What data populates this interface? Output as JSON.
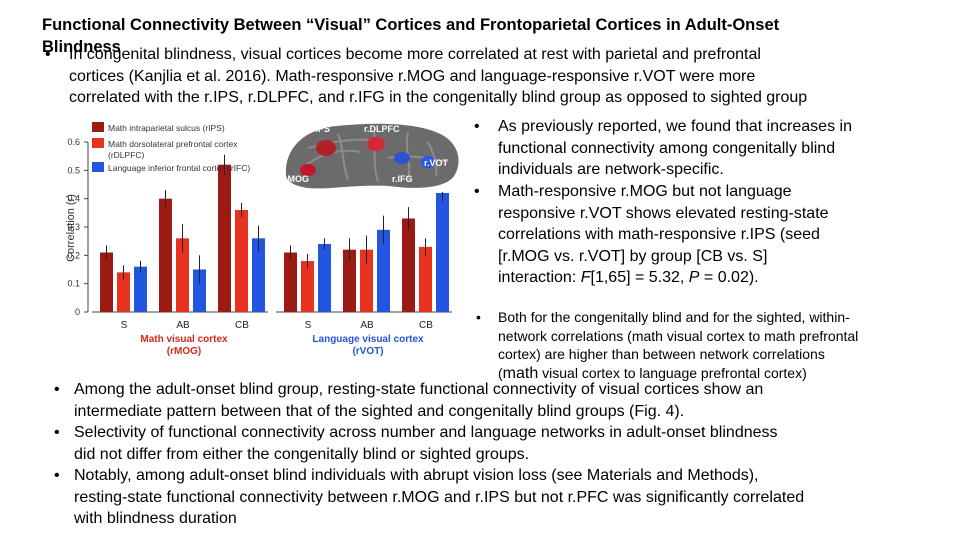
{
  "slide": {
    "title_line1": "Functional Connectivity Between “Visual” Cortices and Frontoparietal Cortices in Adult-Onset",
    "title_line2": "Blindness"
  },
  "top_bullet": {
    "marker": "•",
    "lines": [
      "In congenital blindness, visual cortices become more correlated at rest with parietal and prefrontal",
      "cortices (Kanjlia et al. 2016). Math-responsive  r.MOG and language-responsive r.VOT were more",
      "correlated with the r.IPS, r.DLPFC, and r.IFG in the congenitally blind group as opposed to sighted group"
    ]
  },
  "right_bullets": {
    "b1": {
      "marker": "•",
      "lines": [
        "As previously reported, we found that increases in",
        "functional connectivity among congenitally blind",
        "individuals are network-specific."
      ]
    },
    "b2": {
      "marker": "•",
      "lines": [
        "Math-responsive r.MOG but not language",
        "responsive r.VOT shows elevated resting-state",
        "correlations with math-responsive r.IPS (seed",
        "[r.MOG vs. r.VOT] by group [CB vs. S]"
      ],
      "stat_prefix": "interaction: ",
      "stat_F": "F",
      "stat_rest": "[1,65] = 5.32, ",
      "stat_P": "P",
      "stat_end": " = 0.02)."
    },
    "b3": {
      "marker": "•",
      "lines": [
        "Both for the congenitally blind and for the sighted, within-",
        "network correlations (math visual cortex to math prefrontal",
        "cortex) are higher than between network correlations"
      ],
      "line4_prefix": "(",
      "line4_overlap": "math",
      "line4_rest": " visual cortex to language prefrontal cortex)"
    }
  },
  "bottom_bullets": [
    {
      "marker": "•",
      "lines": [
        "Among the adult-onset blind group, resting-state functional connectivity of visual cortices show an",
        "intermediate pattern between that of the sighted and congenitally blind groups (Fig. 4)."
      ]
    },
    {
      "marker": "•",
      "lines": [
        "Selectivity of functional connectivity across number and language networks in adult-onset blindness",
        "did not differ from either the congenitally blind or sighted groups."
      ]
    },
    {
      "marker": "•",
      "lines": [
        "Notably, among adult-onset blind individuals with abrupt vision loss (see Materials and Methods),",
        "resting-state functional connectivity between r.MOG and r.IPS but not r.PFC was significantly correlated",
        "with blindness duration"
      ]
    }
  ],
  "brain_labels": {
    "rIPS": "rIPS",
    "rDLPFC": "r.DLPFC",
    "rMOG": "r.MOG",
    "rIFG": "r.IFG",
    "rVOT": "r.VOT"
  },
  "chart_data": {
    "type": "bar",
    "ylabel": "Correlation (r)",
    "ylim": [
      0,
      0.6
    ],
    "yticks": [
      "0",
      "0.1",
      "0.2",
      "0.3",
      "0.4",
      "0.5",
      "0.6"
    ],
    "legend": [
      {
        "label": "Math intraparietal sulcus (rIPS)",
        "color": "#9b1b14"
      },
      {
        "label": "Math dorsolateral prefrontal cortex\n(rDLPFC)",
        "color": "#e8321f"
      },
      {
        "label": "Language inferior frontal cortex (rIFC)",
        "color": "#2255e0"
      }
    ],
    "panels": [
      {
        "label1": "Math visual cortex",
        "label2": "(rMOG)",
        "categories": [
          "S",
          "AB",
          "CB"
        ],
        "series": [
          {
            "name": "Math intraparietal sulcus (rIPS)",
            "values": [
              0.21,
              0.4,
              0.52
            ],
            "err": [
              0.025,
              0.03,
              0.035
            ]
          },
          {
            "name": "Math dorsolateral prefrontal cortex\n(rDLPFC)",
            "values": [
              0.14,
              0.26,
              0.36
            ],
            "err": [
              0.025,
              0.05,
              0.025
            ]
          },
          {
            "name": "Language inferior frontal cortex (rIFC)",
            "values": [
              0.16,
              0.15,
              0.26
            ],
            "err": [
              0.02,
              0.05,
              0.045
            ]
          }
        ]
      },
      {
        "label1": "Language visual cortex",
        "label2": "(rVOT)",
        "categories": [
          "S",
          "AB",
          "CB"
        ],
        "series": [
          {
            "name": "Math intraparietal sulcus (rIPS)",
            "values": [
              0.21,
              0.22,
              0.33
            ],
            "err": [
              0.025,
              0.04,
              0.04
            ]
          },
          {
            "name": "Math dorsolateral prefrontal cortex\n(rDLPFC)",
            "values": [
              0.18,
              0.22,
              0.23
            ],
            "err": [
              0.025,
              0.05,
              0.03
            ]
          },
          {
            "name": "Language inferior frontal cortex (rIFC)",
            "values": [
              0.24,
              0.29,
              0.42
            ],
            "err": [
              0.02,
              0.05,
              0.03
            ]
          }
        ]
      }
    ]
  }
}
